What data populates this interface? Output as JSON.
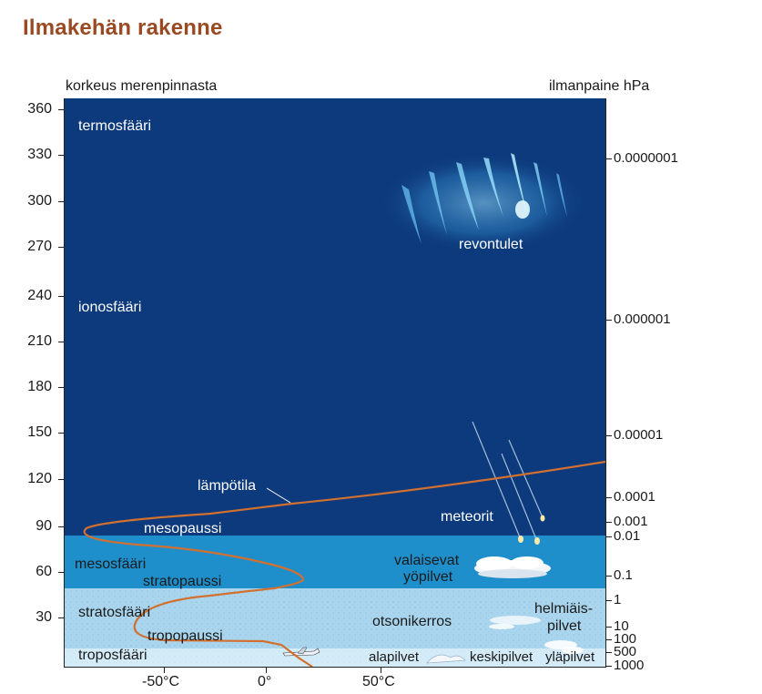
{
  "title": "Ilmakehän rakenne",
  "left_axis": {
    "label": "korkeus merenpinnasta",
    "ticks": [
      "360",
      "330",
      "300",
      "270",
      "240",
      "210",
      "180",
      "150",
      "120",
      "90",
      "60",
      "30"
    ]
  },
  "right_axis": {
    "label": "ilmanpaine  hPa",
    "ticks": [
      "0.0000001",
      "0.000001",
      "0.00001",
      "0.0001",
      "0.001",
      "0.01",
      "0.1",
      "1",
      "10",
      "100",
      "500",
      "1000"
    ]
  },
  "x_axis": {
    "ticks": [
      "-50°C",
      "0°",
      "50°C"
    ]
  },
  "layers": {
    "thermosphere": "termosfääri",
    "ionosphere": "ionosfääri",
    "mesopause": "mesopaussi",
    "mesosphere": "mesosfääri",
    "stratopause": "stratopaussi",
    "stratosphere": "stratosfääri",
    "tropopause": "tropopaussi",
    "troposphere": "troposfääri"
  },
  "features": {
    "aurora": "revontulet",
    "temperature": "lämpötila",
    "meteors": "meteorit",
    "noctilucent_line1": "valaisevat",
    "noctilucent_line2": "yöpilvet",
    "ozone": "otsonikerros",
    "nacreous_line1": "helmiäis-",
    "nacreous_line2": "pilvet",
    "low_clouds": "alapilvet",
    "mid_clouds": "keskipilvet",
    "high_clouds": "yläpilvet"
  },
  "colors": {
    "title": "#9a4a22",
    "upper_atmosphere": "#0d3a7c",
    "mesosphere": "#1f8fcc",
    "stratosphere": "#a9d6ee",
    "troposphere": "#d4ecf8",
    "temperature_curve": "#d2702f"
  }
}
